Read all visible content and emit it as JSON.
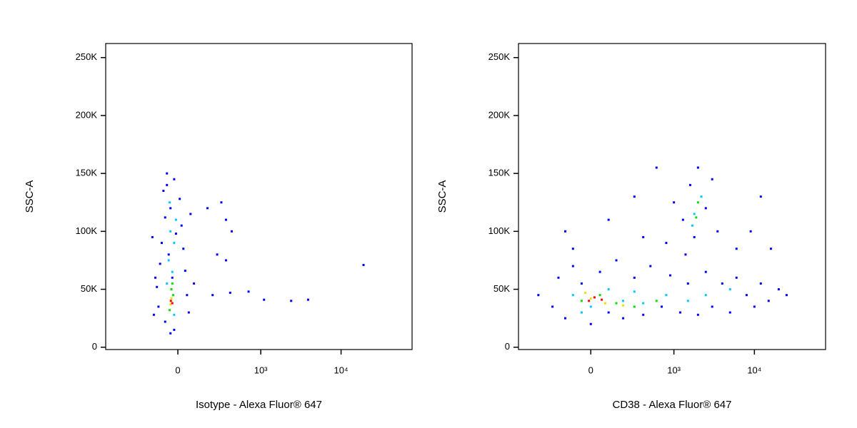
{
  "chart_data": [
    {
      "type": "scatter",
      "xlabel": "Isotype - Alexa Fluor® 647",
      "ylabel": "SSC-A",
      "xscale": "biexponential",
      "xlim": [
        -730,
        76000
      ],
      "ylim": [
        -2000,
        262144
      ],
      "xticks": [
        0,
        {
          "value": 1000,
          "label": "10³"
        },
        {
          "value": 10000,
          "label": "10⁴"
        }
      ],
      "yticks": [
        0,
        {
          "value": 50000,
          "label": "50K"
        },
        {
          "value": 100000,
          "label": "100K"
        },
        {
          "value": 150000,
          "label": "150K"
        },
        {
          "value": 200000,
          "label": "200K"
        },
        {
          "value": 250000,
          "label": "250K"
        }
      ],
      "series": [
        {
          "color": "#0000ff",
          "x": [
            -60,
            -20,
            -80,
            10,
            -40,
            -70,
            20,
            -10,
            -90,
            30,
            -50,
            -100,
            40,
            -30,
            -120,
            50,
            -110,
            60,
            -70,
            -20,
            -40,
            180,
            350,
            300,
            420,
            260,
            350,
            220,
            700,
            1100,
            2400,
            3900,
            19000,
            400,
            -150,
            -130,
            70,
            -60,
            90,
            -140
          ],
          "values": [
            150000,
            145000,
            135000,
            128000,
            120000,
            112000,
            105000,
            98000,
            90000,
            85000,
            80000,
            72000,
            66000,
            60000,
            52000,
            45000,
            35000,
            30000,
            22000,
            15000,
            12000,
            120000,
            110000,
            125000,
            100000,
            80000,
            75000,
            45000,
            48000,
            41000,
            40000,
            41000,
            71000,
            47000,
            95000,
            60000,
            115000,
            140000,
            55000,
            28000
          ]
        },
        {
          "color": "#00c8ff",
          "x": [
            -40,
            -20,
            -50,
            -30,
            -60,
            -10,
            -45,
            -20
          ],
          "values": [
            100000,
            90000,
            75000,
            65000,
            55000,
            110000,
            125000,
            28000
          ]
        },
        {
          "color": "#00e000",
          "x": [
            -35,
            -25,
            -45,
            -30
          ],
          "values": [
            50000,
            45000,
            32000,
            55000
          ]
        },
        {
          "color": "#f0e000",
          "x": [
            -35,
            -40
          ],
          "values": [
            42000,
            37000
          ]
        },
        {
          "color": "#ff0000",
          "x": [
            -38,
            -30
          ],
          "values": [
            40000,
            38000
          ]
        }
      ]
    },
    {
      "type": "scatter",
      "xlabel": "CD38 - Alexa Fluor® 647",
      "ylabel": "SSC-A",
      "xscale": "biexponential",
      "xlim": [
        -730,
        76000
      ],
      "ylim": [
        -2000,
        262144
      ],
      "xticks": [
        0,
        {
          "value": 1000,
          "label": "10³"
        },
        {
          "value": 10000,
          "label": "10⁴"
        }
      ],
      "yticks": [
        0,
        {
          "value": 50000,
          "label": "50K"
        },
        {
          "value": 100000,
          "label": "100K"
        },
        {
          "value": 150000,
          "label": "150K"
        },
        {
          "value": 200000,
          "label": "200K"
        },
        {
          "value": 250000,
          "label": "250K"
        }
      ],
      "series": [
        {
          "color": "#0000ff",
          "x": [
            -400,
            -250,
            -200,
            -150,
            -100,
            -50,
            0,
            50,
            100,
            150,
            200,
            300,
            400,
            500,
            700,
            900,
            1200,
            1500,
            2000,
            2500,
            3000,
            4000,
            5000,
            6000,
            8000,
            10000,
            12000,
            15000,
            20000,
            25000,
            1300,
            1600,
            2000,
            2500,
            3000,
            1800,
            1000,
            800,
            400,
            300,
            -150,
            100,
            -100,
            6000,
            9000,
            12000,
            16000,
            600,
            3500,
            1400
          ],
          "values": [
            45000,
            35000,
            60000,
            25000,
            70000,
            55000,
            20000,
            65000,
            30000,
            75000,
            25000,
            60000,
            28000,
            70000,
            35000,
            62000,
            30000,
            55000,
            28000,
            65000,
            35000,
            55000,
            30000,
            60000,
            45000,
            35000,
            55000,
            40000,
            50000,
            45000,
            110000,
            140000,
            155000,
            120000,
            145000,
            95000,
            125000,
            90000,
            95000,
            130000,
            100000,
            110000,
            85000,
            85000,
            100000,
            130000,
            85000,
            155000,
            100000,
            80000
          ]
        },
        {
          "color": "#00c8ff",
          "x": [
            -100,
            0,
            100,
            200,
            400,
            800,
            1500,
            2500,
            5000,
            1800,
            2200,
            1700,
            -50,
            300
          ],
          "values": [
            45000,
            35000,
            50000,
            40000,
            38000,
            45000,
            40000,
            45000,
            50000,
            115000,
            130000,
            105000,
            30000,
            48000
          ]
        },
        {
          "color": "#00e000",
          "x": [
            -50,
            50,
            150,
            300,
            600,
            1900,
            2000
          ],
          "values": [
            40000,
            45000,
            38000,
            35000,
            40000,
            112000,
            125000
          ]
        },
        {
          "color": "#f0e000",
          "x": [
            0,
            80,
            200,
            -30
          ],
          "values": [
            42000,
            38000,
            36000,
            47000
          ]
        },
        {
          "color": "#ff0000",
          "x": [
            20,
            -10,
            60
          ],
          "values": [
            43000,
            40000,
            41000
          ]
        }
      ]
    }
  ]
}
